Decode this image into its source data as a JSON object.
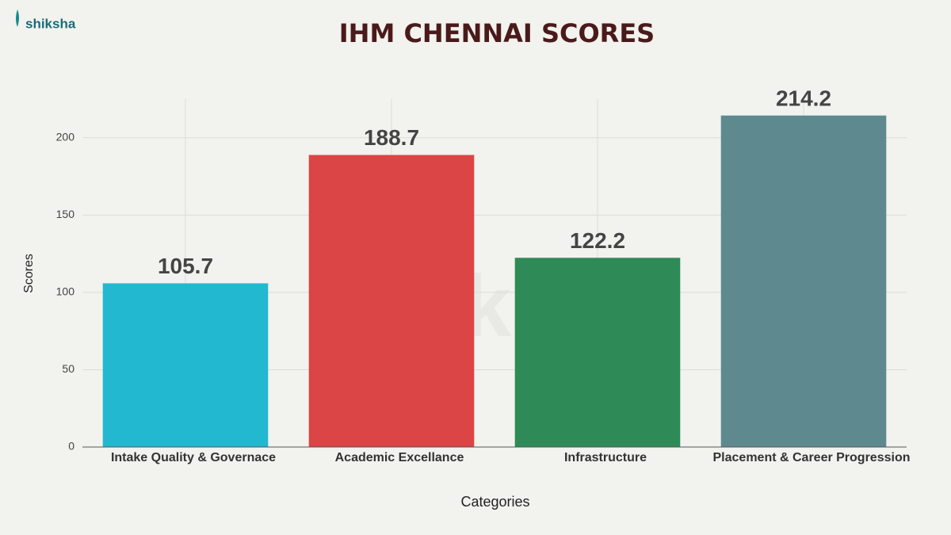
{
  "logo": "shiksha",
  "chart_data": {
    "type": "bar",
    "title": "IHM CHENNAI SCORES",
    "x_label": "Categories",
    "y_label": "Scores",
    "categories": [
      "Intake Quality & Governace",
      "Academic Excellance",
      "Infrastructure",
      "Placement & Career Progression"
    ],
    "values": [
      105.7,
      188.7,
      122.2,
      214.2
    ],
    "colors": [
      "#22b8cf",
      "#dc4545",
      "#2e8b57",
      "#5e8a8f"
    ],
    "ylim": [
      0,
      225
    ],
    "yticks": [
      0,
      50,
      100,
      150,
      200
    ],
    "grid": true
  }
}
